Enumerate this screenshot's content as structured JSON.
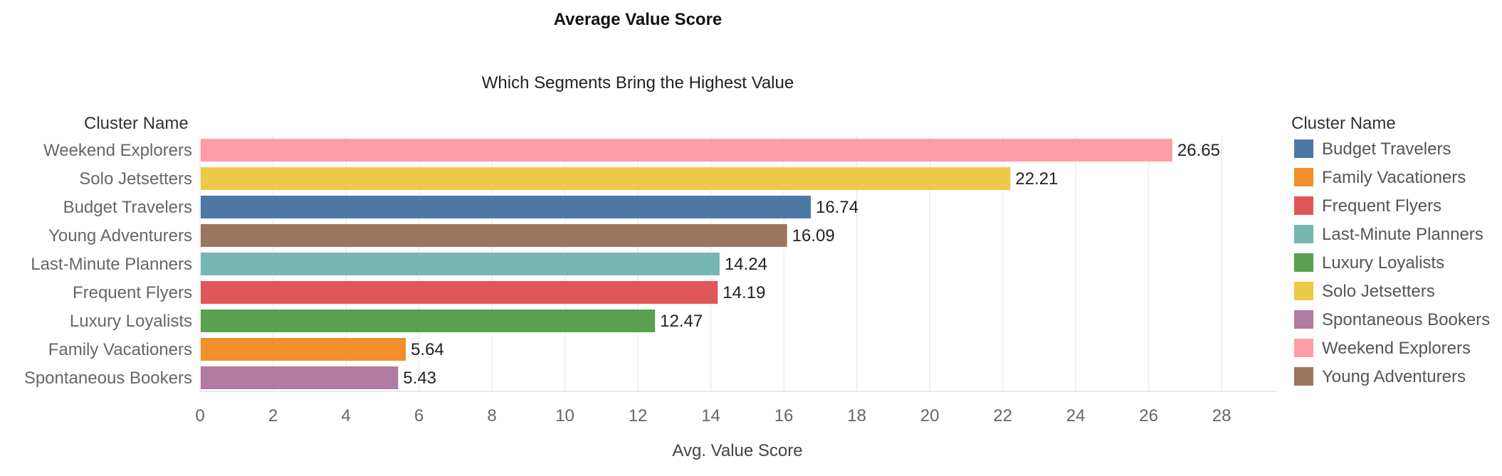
{
  "header": {
    "title": "Average Value Score"
  },
  "chart_data": {
    "type": "bar",
    "orientation": "horizontal",
    "title": "Which Segments Bring the Highest Value",
    "category_axis_title": "Cluster Name",
    "xlabel": "Avg. Value Score",
    "ylabel": "",
    "xlim": [
      0,
      29.5
    ],
    "ticks": [
      "0",
      "2",
      "4",
      "6",
      "8",
      "10",
      "12",
      "14",
      "16",
      "18",
      "20",
      "22",
      "24",
      "26",
      "28"
    ],
    "grid": true,
    "categories": [
      "Weekend Explorers",
      "Solo Jetsetters",
      "Budget Travelers",
      "Young Adventurers",
      "Last-Minute Planners",
      "Frequent Flyers",
      "Luxury Loyalists",
      "Family Vacationers",
      "Spontaneous Bookers"
    ],
    "values": [
      26.65,
      22.21,
      16.74,
      16.09,
      14.24,
      14.19,
      12.47,
      5.64,
      5.43
    ],
    "value_labels": [
      "26.65",
      "22.21",
      "16.74",
      "16.09",
      "14.24",
      "14.19",
      "12.47",
      "5.64",
      "5.43"
    ],
    "bar_colors": [
      "#ff9da7",
      "#edc948",
      "#4e79a7",
      "#9c755f",
      "#76b7b2",
      "#e15759",
      "#59a14f",
      "#f28e2b",
      "#b07aa1"
    ],
    "legend": {
      "title": "Cluster Name",
      "position": "right",
      "entries": [
        {
          "label": "Budget Travelers",
          "color": "#4e79a7"
        },
        {
          "label": "Family Vacationers",
          "color": "#f28e2b"
        },
        {
          "label": "Frequent Flyers",
          "color": "#e15759"
        },
        {
          "label": "Last-Minute Planners",
          "color": "#76b7b2"
        },
        {
          "label": "Luxury Loyalists",
          "color": "#59a14f"
        },
        {
          "label": "Solo Jetsetters",
          "color": "#edc948"
        },
        {
          "label": "Spontaneous Bookers",
          "color": "#b07aa1"
        },
        {
          "label": "Weekend Explorers",
          "color": "#ff9da7"
        },
        {
          "label": "Young Adventurers",
          "color": "#9c755f"
        }
      ]
    }
  }
}
